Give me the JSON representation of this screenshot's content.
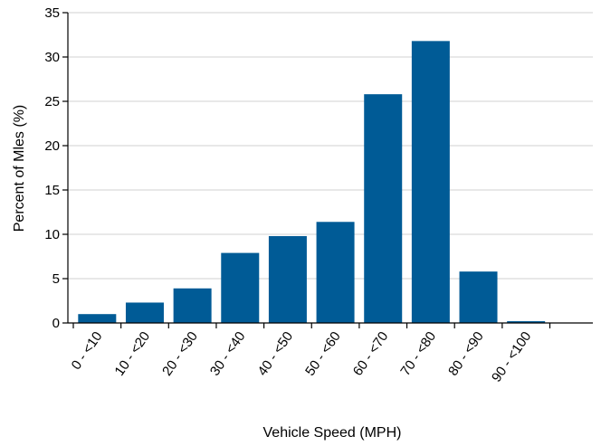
{
  "chart_data": {
    "type": "bar",
    "categories": [
      "0 - <10",
      "10 - <20",
      "20 - <30",
      "30 - <40",
      "40 - <50",
      "50 - <60",
      "60 - <70",
      "70 - <80",
      "80 - <90",
      "90 - <100"
    ],
    "values": [
      1.0,
      2.3,
      3.9,
      7.9,
      9.8,
      11.4,
      25.8,
      31.8,
      5.8,
      0.2
    ],
    "xlabel": "Vehicle Speed (MPH)",
    "ylabel": "Percent of Mles (%)",
    "ylim": [
      0,
      35
    ],
    "yticks": [
      0,
      5,
      10,
      15,
      20,
      25,
      30,
      35
    ],
    "grid": true,
    "bar_color": "#005B96",
    "grid_color": "#D9D9D9"
  }
}
